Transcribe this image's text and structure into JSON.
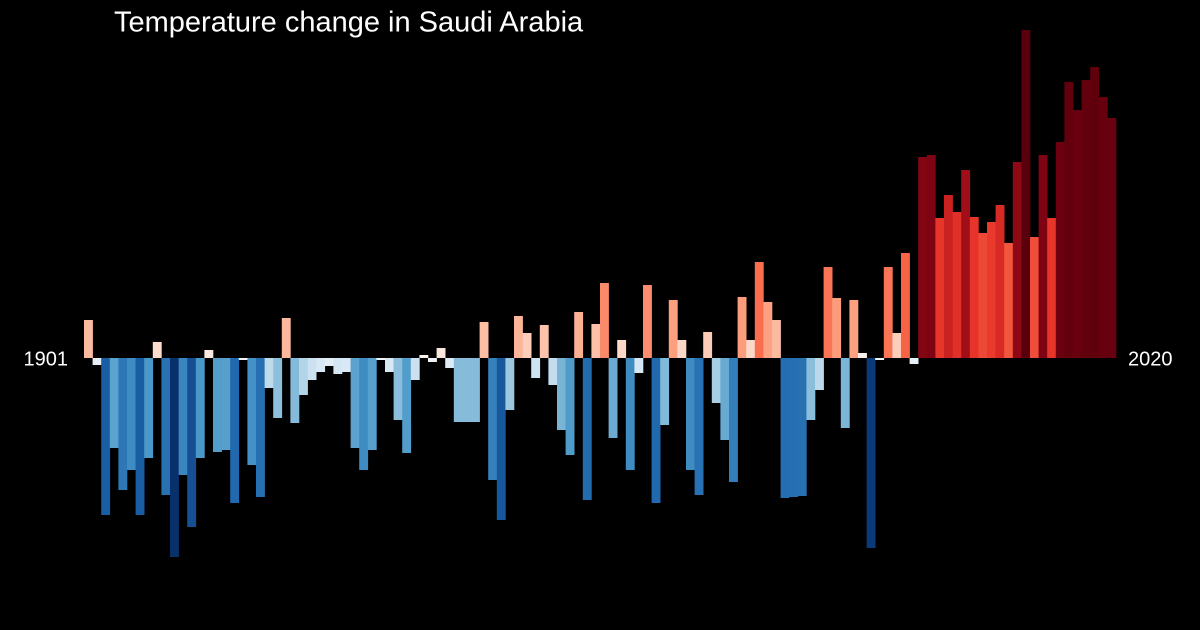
{
  "chart_data": {
    "type": "bar",
    "title": "Temperature change in Saudi Arabia",
    "categories": [
      "1901",
      null,
      null,
      null,
      null,
      null,
      null,
      null,
      null,
      null,
      null,
      null,
      null,
      null,
      null,
      null,
      null,
      null,
      null,
      null,
      null,
      null,
      null,
      null,
      null,
      null,
      null,
      null,
      null,
      null,
      null,
      null,
      null,
      null,
      null,
      null,
      null,
      null,
      null,
      null,
      null,
      null,
      null,
      null,
      null,
      null,
      null,
      null,
      null,
      null,
      null,
      null,
      null,
      null,
      null,
      null,
      null,
      null,
      null,
      null,
      null,
      null,
      null,
      null,
      null,
      null,
      null,
      null,
      null,
      null,
      null,
      null,
      null,
      null,
      null,
      null,
      null,
      null,
      null,
      null,
      null,
      null,
      null,
      null,
      null,
      null,
      null,
      null,
      null,
      null,
      null,
      null,
      null,
      null,
      null,
      null,
      null,
      null,
      null,
      null,
      null,
      null,
      null,
      null,
      null,
      null,
      null,
      null,
      null,
      null,
      null,
      null,
      null,
      null,
      null,
      null,
      null,
      null,
      null,
      "2020"
    ],
    "values": [
      0.38,
      -0.07,
      -1.57,
      -0.9,
      -1.32,
      -1.12,
      -1.57,
      -1.0,
      0.16,
      -1.37,
      -1.99,
      -1.17,
      -1.69,
      -1.0,
      0.08,
      -0.94,
      -0.92,
      -1.45,
      -0.02,
      -1.07,
      -1.39,
      -0.3,
      -0.6,
      0.4,
      -0.65,
      -0.37,
      -0.22,
      -0.14,
      -0.08,
      -0.16,
      -0.14,
      -0.9,
      -1.12,
      -0.92,
      -0.02,
      -0.14,
      -0.62,
      -0.95,
      -0.22,
      0.03,
      -0.04,
      0.1,
      -0.1,
      -0.64,
      -0.64,
      -0.64,
      0.36,
      -1.22,
      -1.62,
      -0.52,
      0.42,
      0.25,
      -0.2,
      0.33,
      -0.27,
      -0.72,
      -0.97,
      0.46,
      -1.42,
      0.34,
      0.75,
      -0.8,
      0.18,
      -1.12,
      -0.15,
      0.73,
      -1.45,
      -0.67,
      0.58,
      0.18,
      -1.12,
      -1.37,
      0.26,
      -0.45,
      -0.82,
      -1.24,
      0.61,
      0.18,
      0.96,
      0.56,
      0.38,
      -1.4,
      -1.39,
      -1.38,
      -0.62,
      -0.32,
      0.91,
      0.6,
      -0.7,
      0.58,
      0.05,
      -1.9,
      -0.02,
      0.91,
      0.25,
      1.05,
      -0.06,
      2.01,
      2.03,
      1.4,
      1.63,
      1.46,
      1.88,
      1.41,
      1.25,
      1.36,
      1.53,
      1.15,
      1.96,
      3.28,
      1.21,
      2.03,
      1.4,
      2.16,
      2.76,
      2.48,
      2.78,
      2.91,
      2.61,
      2.4
    ],
    "ylim": [
      -2.5,
      3.5
    ],
    "colorscale": [
      {
        "value": -2.0,
        "color": "#08306b"
      },
      {
        "value": -1.5,
        "color": "#1c64ab"
      },
      {
        "value": -1.0,
        "color": "#4a98c9"
      },
      {
        "value": -0.5,
        "color": "#9ecae1"
      },
      {
        "value": -0.1,
        "color": "#deebf7"
      },
      {
        "value": 0.0,
        "color": "#f7f7f7"
      },
      {
        "value": 0.2,
        "color": "#fcd5c3"
      },
      {
        "value": 0.5,
        "color": "#fcaa8a"
      },
      {
        "value": 1.0,
        "color": "#f9694a"
      },
      {
        "value": 1.4,
        "color": "#e8352a"
      },
      {
        "value": 1.8,
        "color": "#b3131b"
      },
      {
        "value": 2.1,
        "color": "#6e0010"
      },
      {
        "value": 3.3,
        "color": "#5a000c"
      }
    ]
  }
}
